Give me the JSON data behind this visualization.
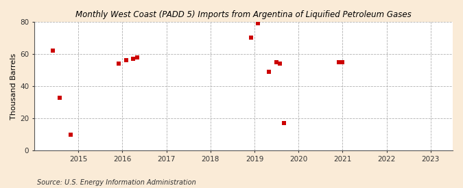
{
  "title": "Monthly West Coast (PADD 5) Imports from Argentina of Liquified Petroleum Gases",
  "ylabel": "Thousand Barrels",
  "source": "Source: U.S. Energy Information Administration",
  "background_color": "#faebd7",
  "plot_bg_color": "#ffffff",
  "marker_color": "#cc0000",
  "marker_size": 18,
  "xlim": [
    2014.0,
    2023.5
  ],
  "ylim": [
    0,
    80
  ],
  "xticks": [
    2015,
    2016,
    2017,
    2018,
    2019,
    2020,
    2021,
    2022,
    2023
  ],
  "yticks": [
    0,
    20,
    40,
    60,
    80
  ],
  "data_x": [
    2014.42,
    2014.58,
    2014.83,
    2015.92,
    2016.08,
    2016.25,
    2016.33,
    2018.92,
    2019.08,
    2019.33,
    2019.5,
    2019.58,
    2019.67,
    2020.92,
    2021.0
  ],
  "data_y": [
    62,
    33,
    10,
    54,
    56,
    57,
    58,
    70,
    79,
    49,
    55,
    54,
    17,
    55,
    55
  ]
}
